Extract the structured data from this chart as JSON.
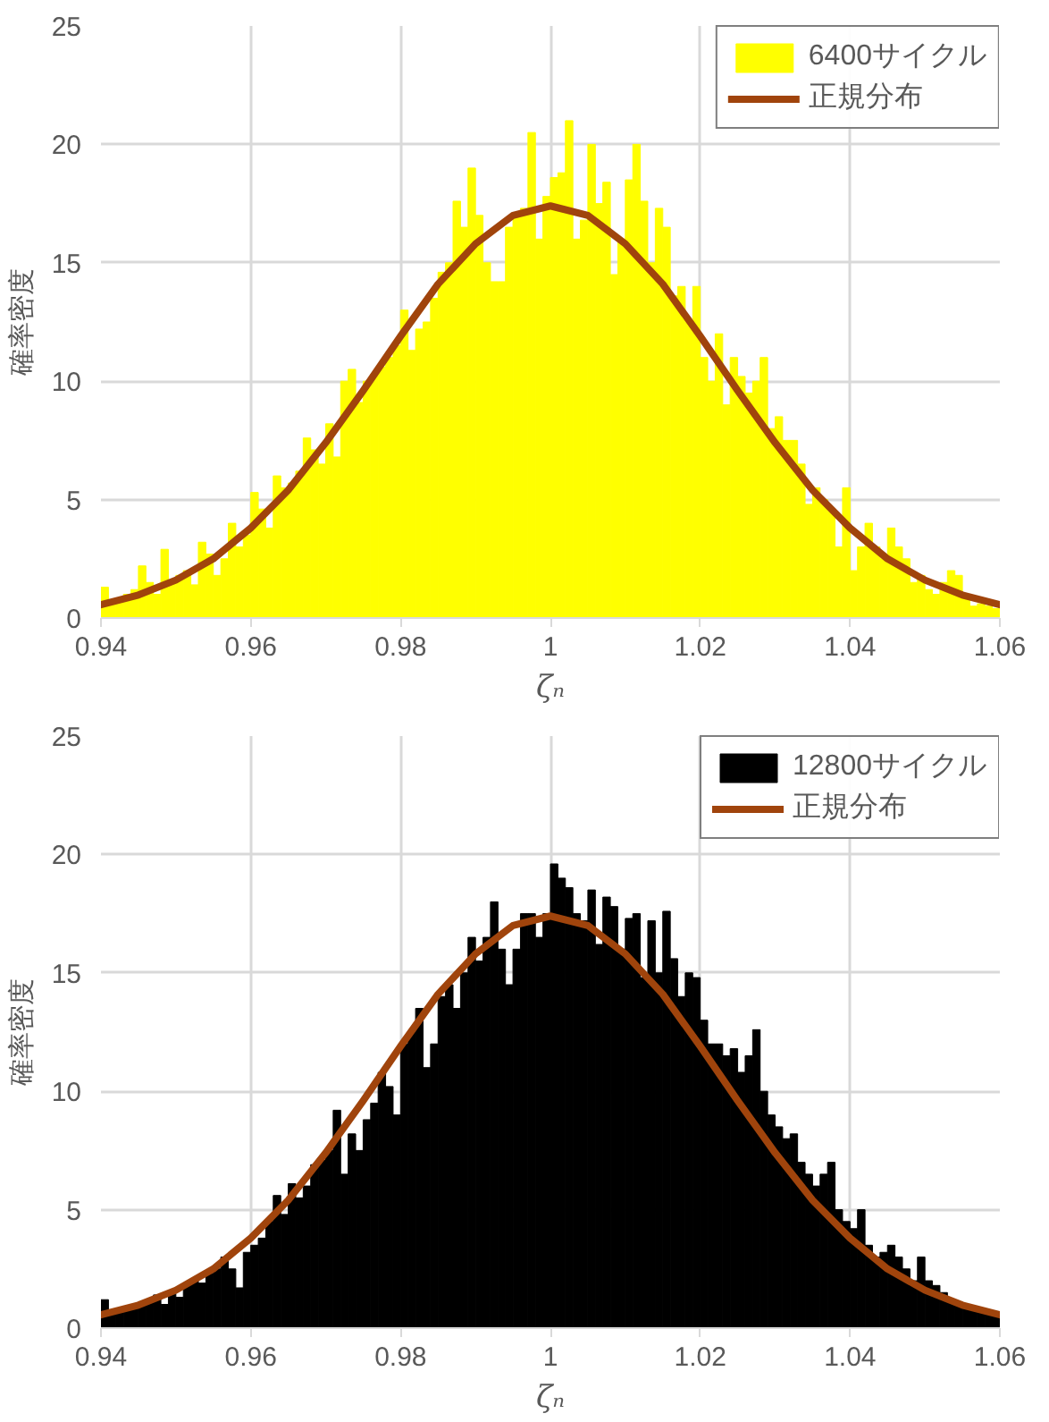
{
  "chart_data": [
    {
      "type": "histogram",
      "xlabel": "ζₙ",
      "ylabel": "確率密度",
      "xlim": [
        0.94,
        1.06
      ],
      "ylim": [
        0,
        25
      ],
      "xticks": [
        0.94,
        0.96,
        0.98,
        1,
        1.02,
        1.04,
        1.06
      ],
      "yticks": [
        0,
        5,
        10,
        15,
        20,
        25
      ],
      "grid": true,
      "legend": "top right",
      "bins": [
        0.94,
        0.941,
        0.942,
        0.943,
        0.944,
        0.945,
        0.946,
        0.947,
        0.948,
        0.949,
        0.95,
        0.951,
        0.952,
        0.953,
        0.954,
        0.955,
        0.956,
        0.957,
        0.958,
        0.959,
        0.96,
        0.961,
        0.962,
        0.963,
        0.964,
        0.965,
        0.966,
        0.967,
        0.968,
        0.969,
        0.97,
        0.971,
        0.972,
        0.973,
        0.974,
        0.975,
        0.976,
        0.977,
        0.978,
        0.979,
        0.98,
        0.981,
        0.982,
        0.983,
        0.984,
        0.985,
        0.986,
        0.987,
        0.988,
        0.989,
        0.99,
        0.991,
        0.992,
        0.993,
        0.994,
        0.995,
        0.996,
        0.997,
        0.998,
        0.999,
        1.0,
        1.001,
        1.002,
        1.003,
        1.004,
        1.005,
        1.006,
        1.007,
        1.008,
        1.009,
        1.01,
        1.011,
        1.012,
        1.013,
        1.014,
        1.015,
        1.016,
        1.017,
        1.018,
        1.019,
        1.02,
        1.021,
        1.022,
        1.023,
        1.024,
        1.025,
        1.026,
        1.027,
        1.028,
        1.029,
        1.03,
        1.031,
        1.032,
        1.033,
        1.034,
        1.035,
        1.036,
        1.037,
        1.038,
        1.039,
        1.04,
        1.041,
        1.042,
        1.043,
        1.044,
        1.045,
        1.046,
        1.047,
        1.048,
        1.049,
        1.05,
        1.051,
        1.052,
        1.053,
        1.054,
        1.055,
        1.056,
        1.057,
        1.058,
        1.059,
        1.06
      ],
      "series": [
        {
          "name": "6400サイクル",
          "color": "#ffff00",
          "values": [
            1.3,
            0.6,
            0.8,
            1.0,
            1.2,
            2.2,
            1.5,
            1.0,
            2.9,
            1.6,
            1.8,
            2.0,
            1.4,
            3.2,
            2.7,
            1.8,
            2.5,
            4.0,
            3.0,
            3.5,
            5.3,
            4.6,
            3.8,
            6.0,
            5.5,
            5.7,
            6.2,
            7.6,
            7.1,
            6.5,
            8.2,
            6.8,
            10.0,
            10.5,
            9.1,
            10.0,
            10.3,
            10.6,
            11.0,
            11.5,
            13.0,
            11.3,
            12.2,
            12.5,
            13.5,
            14.6,
            15.0,
            17.6,
            16.5,
            19.0,
            17.0,
            15.0,
            14.2,
            14.2,
            16.5,
            17.1,
            17.3,
            20.5,
            16.0,
            17.8,
            18.6,
            18.8,
            21.0,
            16.0,
            16.8,
            20.0,
            17.5,
            18.4,
            14.5,
            16.0,
            18.5,
            20.0,
            17.6,
            15.0,
            17.3,
            16.5,
            13.6,
            14.0,
            12.5,
            14.0,
            11.0,
            10.0,
            12.0,
            9.0,
            11.0,
            10.2,
            9.5,
            10.0,
            11.0,
            8.0,
            8.5,
            7.5,
            7.5,
            6.5,
            4.8,
            5.5,
            5.0,
            4.5,
            3.0,
            5.5,
            2.0,
            3.0,
            4.0,
            3.0,
            2.5,
            3.8,
            3.0,
            2.5,
            1.5,
            1.8,
            1.2,
            1.0,
            1.5,
            2.0,
            1.8,
            1.0,
            0.5,
            0.6,
            0.5,
            0.4
          ]
        },
        {
          "name": "正規分布",
          "type": "line",
          "color": "#a0440c",
          "x": [
            0.94,
            0.945,
            0.95,
            0.955,
            0.96,
            0.965,
            0.97,
            0.975,
            0.98,
            0.985,
            0.99,
            0.995,
            1.0,
            1.005,
            1.01,
            1.015,
            1.02,
            1.025,
            1.03,
            1.035,
            1.04,
            1.045,
            1.05,
            1.055,
            1.06
          ],
          "values": [
            0.56,
            0.97,
            1.6,
            2.5,
            3.8,
            5.4,
            7.4,
            9.6,
            11.9,
            14.1,
            15.8,
            17.0,
            17.4,
            17.0,
            15.8,
            14.1,
            11.9,
            9.6,
            7.4,
            5.4,
            3.8,
            2.5,
            1.6,
            0.97,
            0.56
          ]
        }
      ]
    },
    {
      "type": "histogram",
      "xlabel": "ζₙ",
      "ylabel": "確率密度",
      "xlim": [
        0.94,
        1.06
      ],
      "ylim": [
        0,
        25
      ],
      "xticks": [
        0.94,
        0.96,
        0.98,
        1,
        1.02,
        1.04,
        1.06
      ],
      "yticks": [
        0,
        5,
        10,
        15,
        20,
        25
      ],
      "grid": true,
      "legend": "top right",
      "bins": [
        0.94,
        0.941,
        0.942,
        0.943,
        0.944,
        0.945,
        0.946,
        0.947,
        0.948,
        0.949,
        0.95,
        0.951,
        0.952,
        0.953,
        0.954,
        0.955,
        0.956,
        0.957,
        0.958,
        0.959,
        0.96,
        0.961,
        0.962,
        0.963,
        0.964,
        0.965,
        0.966,
        0.967,
        0.968,
        0.969,
        0.97,
        0.971,
        0.972,
        0.973,
        0.974,
        0.975,
        0.976,
        0.977,
        0.978,
        0.979,
        0.98,
        0.981,
        0.982,
        0.983,
        0.984,
        0.985,
        0.986,
        0.987,
        0.988,
        0.989,
        0.99,
        0.991,
        0.992,
        0.993,
        0.994,
        0.995,
        0.996,
        0.997,
        0.998,
        0.999,
        1.0,
        1.001,
        1.002,
        1.003,
        1.004,
        1.005,
        1.006,
        1.007,
        1.008,
        1.009,
        1.01,
        1.011,
        1.012,
        1.013,
        1.014,
        1.015,
        1.016,
        1.017,
        1.018,
        1.019,
        1.02,
        1.021,
        1.022,
        1.023,
        1.024,
        1.025,
        1.026,
        1.027,
        1.028,
        1.029,
        1.03,
        1.031,
        1.032,
        1.033,
        1.034,
        1.035,
        1.036,
        1.037,
        1.038,
        1.039,
        1.04,
        1.041,
        1.042,
        1.043,
        1.044,
        1.045,
        1.046,
        1.047,
        1.048,
        1.049,
        1.05,
        1.051,
        1.052,
        1.053,
        1.054,
        1.055,
        1.056,
        1.057,
        1.058,
        1.059,
        1.06
      ],
      "series": [
        {
          "name": "12800サイクル",
          "color": "#000000",
          "values": [
            1.2,
            0.6,
            0.7,
            0.8,
            0.9,
            1.0,
            1.1,
            1.4,
            1.0,
            1.6,
            1.3,
            1.8,
            2.0,
            1.9,
            2.3,
            2.5,
            3.0,
            2.5,
            1.7,
            3.2,
            3.5,
            3.8,
            4.5,
            5.6,
            4.8,
            6.1,
            5.5,
            6.0,
            6.9,
            7.1,
            7.5,
            9.2,
            6.5,
            8.2,
            7.5,
            8.8,
            9.5,
            10.8,
            10.2,
            9.0,
            12.0,
            12.5,
            13.5,
            11.0,
            12.0,
            14.0,
            14.5,
            13.5,
            15.0,
            16.5,
            15.5,
            16.5,
            18.0,
            16.0,
            14.5,
            16.0,
            17.5,
            17.5,
            16.5,
            17.5,
            19.6,
            19.0,
            18.6,
            17.5,
            17.2,
            18.5,
            16.2,
            18.2,
            17.8,
            16.0,
            17.3,
            17.5,
            14.8,
            17.2,
            15.0,
            17.6,
            15.6,
            14.0,
            15.0,
            14.8,
            13.0,
            12.0,
            12.0,
            11.5,
            11.8,
            10.8,
            11.5,
            12.6,
            10.0,
            9.0,
            8.5,
            8.0,
            8.2,
            7.0,
            6.5,
            6.0,
            6.5,
            7.0,
            5.0,
            4.5,
            4.2,
            5.0,
            3.5,
            3.0,
            3.2,
            3.5,
            3.0,
            2.5,
            2.0,
            3.0,
            2.0,
            1.8,
            1.5,
            1.2,
            1.0,
            1.0,
            0.9,
            0.8,
            0.6,
            0.5
          ]
        },
        {
          "name": "正規分布",
          "type": "line",
          "color": "#a0440c",
          "x": [
            0.94,
            0.945,
            0.95,
            0.955,
            0.96,
            0.965,
            0.97,
            0.975,
            0.98,
            0.985,
            0.99,
            0.995,
            1.0,
            1.005,
            1.01,
            1.015,
            1.02,
            1.025,
            1.03,
            1.035,
            1.04,
            1.045,
            1.05,
            1.055,
            1.06
          ],
          "values": [
            0.56,
            0.97,
            1.6,
            2.5,
            3.8,
            5.4,
            7.4,
            9.6,
            11.9,
            14.1,
            15.8,
            17.0,
            17.4,
            17.0,
            15.8,
            14.1,
            11.9,
            9.6,
            7.4,
            5.4,
            3.8,
            2.5,
            1.6,
            0.97,
            0.56
          ]
        }
      ]
    }
  ]
}
